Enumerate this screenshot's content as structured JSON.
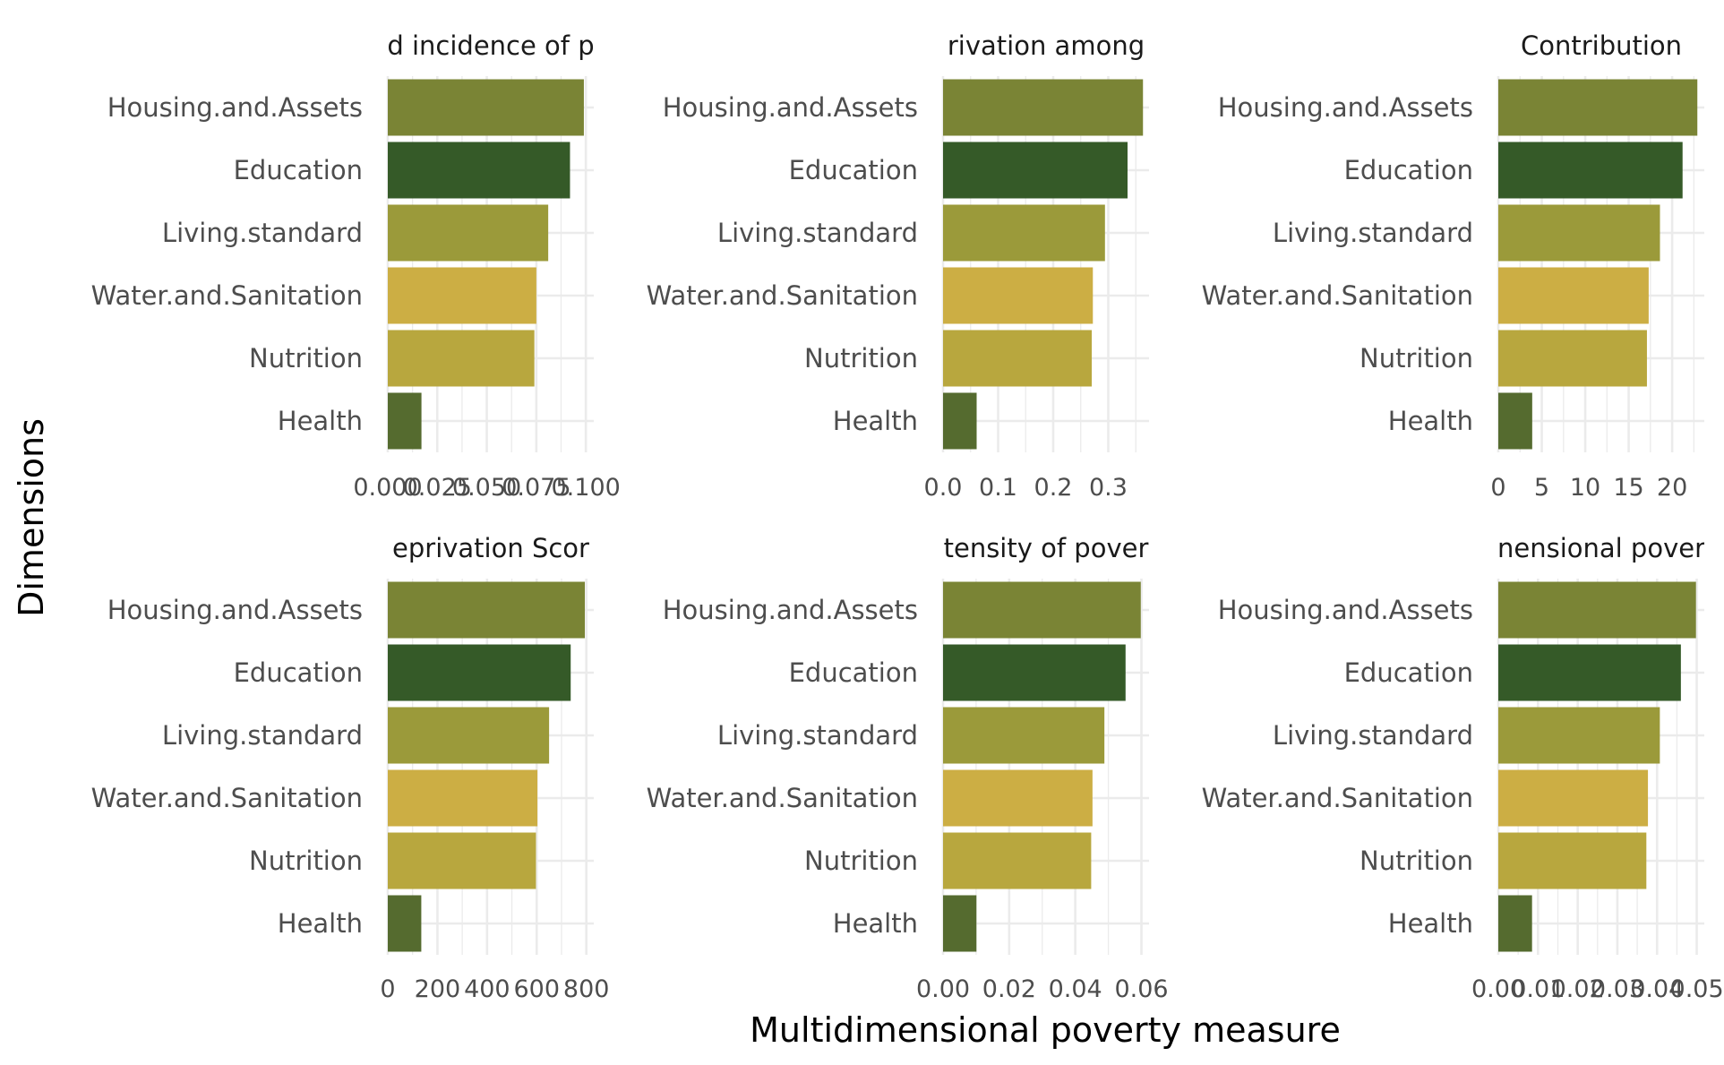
{
  "chart_data": {
    "type": "bar",
    "orientation": "horizontal",
    "xlabel": "Multidimensional poverty measure",
    "ylabel": "Dimensions",
    "grid": true,
    "legend": "none",
    "categories": [
      "Health",
      "Nutrition",
      "Water.and.Sanitation",
      "Living.standard",
      "Education",
      "Housing.and.Assets"
    ],
    "colors": {
      "Health": "#556b2f",
      "Nutrition": "#b8a73e",
      "Water.and.Sanitation": "#ccae44",
      "Living.standard": "#9b9a3a",
      "Education": "#355a28",
      "Housing.and.Assets": "#7a8435"
    },
    "panels": [
      {
        "title": "d incidence of p",
        "xlim": [
          0,
          0.104
        ],
        "ticks": [
          0,
          0.025,
          0.05,
          0.075,
          0.1
        ],
        "tick_labels": [
          "0.000",
          "0.025",
          "0.050",
          "0.075",
          "0.100"
        ],
        "values": [
          0.017,
          0.074,
          0.075,
          0.081,
          0.092,
          0.099
        ]
      },
      {
        "title": "rivation among",
        "xlim": [
          0,
          0.374
        ],
        "ticks": [
          0,
          0.1,
          0.2,
          0.3
        ],
        "tick_labels": [
          "0.0",
          "0.1",
          "0.2",
          "0.3"
        ],
        "values": [
          0.061,
          0.27,
          0.272,
          0.294,
          0.335,
          0.363
        ]
      },
      {
        "title": "Contribution",
        "xlim": [
          0,
          23.7
        ],
        "ticks": [
          0,
          5,
          10,
          15,
          20
        ],
        "tick_labels": [
          "0",
          "5",
          "10",
          "15",
          "20"
        ],
        "values": [
          3.9,
          17.1,
          17.3,
          18.6,
          21.2,
          22.9
        ]
      },
      {
        "title": "eprivation Scor",
        "xlim": [
          0,
          830
        ],
        "ticks": [
          0,
          200,
          400,
          600,
          800
        ],
        "tick_labels": [
          "0",
          "200",
          "400",
          "600",
          "800"
        ],
        "values": [
          135,
          597,
          603,
          650,
          737,
          794
        ]
      },
      {
        "title": "tensity of pover",
        "xlim": [
          0,
          0.0623
        ],
        "ticks": [
          0,
          0.02,
          0.04,
          0.06
        ],
        "tick_labels": [
          "0.00",
          "0.02",
          "0.04",
          "0.06"
        ],
        "values": [
          0.0101,
          0.0448,
          0.0452,
          0.0488,
          0.0552,
          0.0598
        ]
      },
      {
        "title": "nensional pover",
        "xlim": [
          0,
          0.0519
        ],
        "ticks": [
          0,
          0.01,
          0.02,
          0.03,
          0.04,
          0.05
        ],
        "tick_labels": [
          "0.00",
          "0.01",
          "0.02",
          "0.03",
          "0.04",
          "0.05"
        ],
        "values": [
          0.0085,
          0.0373,
          0.0377,
          0.0407,
          0.046,
          0.0498
        ]
      }
    ]
  }
}
